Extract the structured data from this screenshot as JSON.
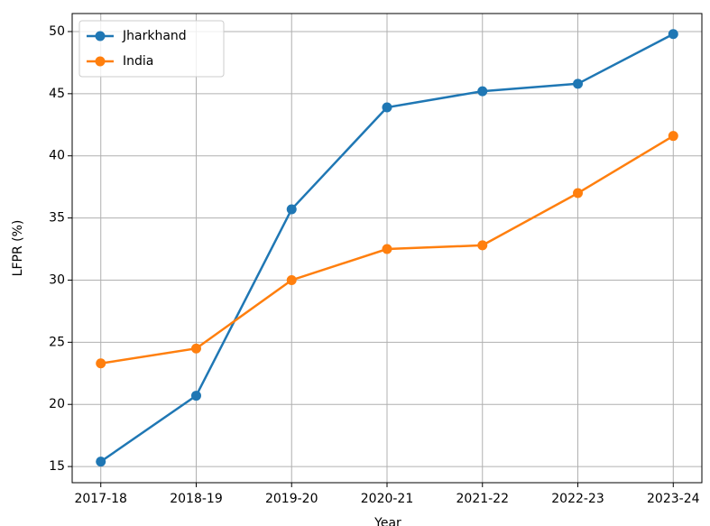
{
  "chart_data": {
    "type": "line",
    "x_label": "Year",
    "y_label": "LFPR (%)",
    "categories": [
      "2017-18",
      "2018-19",
      "2019-20",
      "2020-21",
      "2021-22",
      "2022-23",
      "2023-24"
    ],
    "series": [
      {
        "name": "Jharkhand",
        "color": "#1f77b4",
        "values": [
          15.4,
          20.7,
          35.7,
          43.9,
          45.2,
          45.8,
          49.8
        ]
      },
      {
        "name": "India",
        "color": "#ff7f0e",
        "values": [
          23.3,
          24.5,
          30.0,
          32.5,
          32.8,
          37.0,
          41.6
        ]
      }
    ],
    "ylim": [
      13.7,
      51.45
    ],
    "yticks": [
      15,
      20,
      25,
      30,
      35,
      40,
      45,
      50
    ],
    "grid": true,
    "legend": "upper left"
  }
}
